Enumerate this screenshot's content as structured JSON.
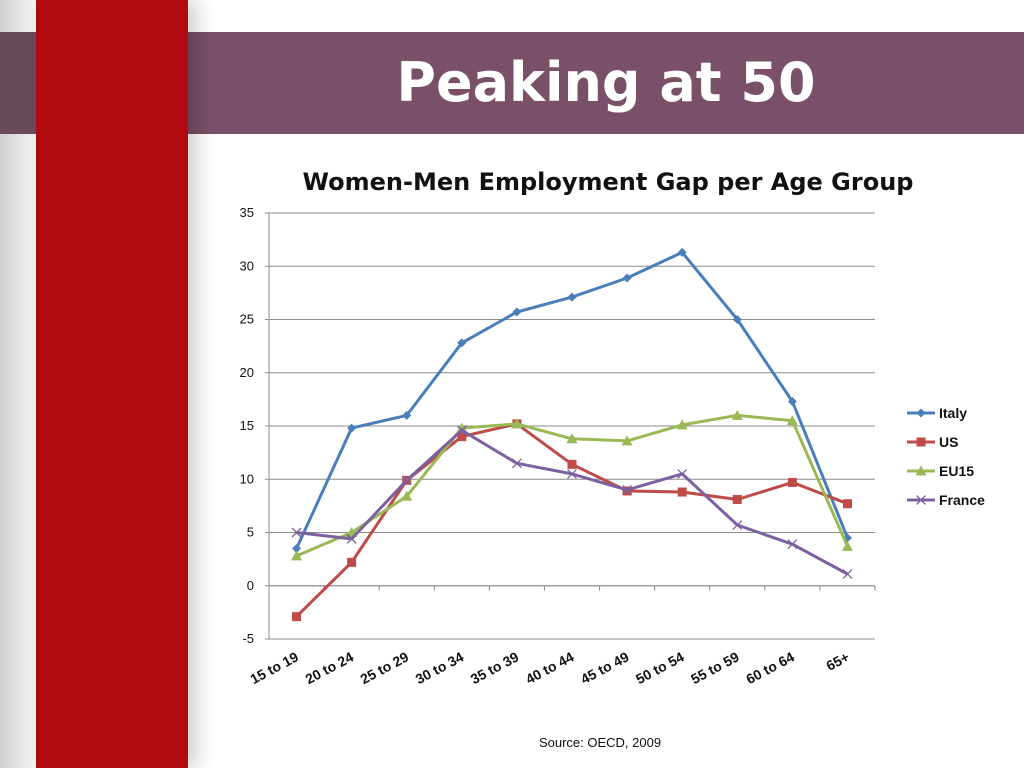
{
  "slide": {
    "title": "Peaking at 50",
    "source": "Source: OECD, 2009"
  },
  "colors": {
    "red_bar": "#b00a10",
    "title_band": "#7a5068"
  },
  "chart_data": {
    "type": "line",
    "title": "Women-Men Employment Gap per Age Group",
    "xlabel": "",
    "ylabel": "",
    "categories": [
      "15 to 19",
      "20 to 24",
      "25 to 29",
      "30 to 34",
      "35 to 39",
      "40 to 44",
      "45 to 49",
      "50 to 54",
      "55 to 59",
      "60 to 64",
      "65+"
    ],
    "ylim": [
      -5,
      35
    ],
    "yticks": [
      -5,
      0,
      5,
      10,
      15,
      20,
      25,
      30,
      35
    ],
    "grid": true,
    "legend_position": "right",
    "series": [
      {
        "name": "Italy",
        "color": "#4a7ebb",
        "marker": "diamond",
        "values": [
          3.5,
          14.8,
          16.0,
          22.8,
          25.7,
          27.1,
          28.9,
          31.3,
          25.0,
          17.3,
          4.5
        ]
      },
      {
        "name": "US",
        "color": "#be4b48",
        "marker": "square",
        "values": [
          -2.9,
          2.2,
          9.9,
          14.0,
          15.2,
          11.4,
          8.9,
          8.8,
          8.1,
          9.7,
          7.7
        ]
      },
      {
        "name": "EU15",
        "color": "#98b954",
        "marker": "triangle",
        "values": [
          2.8,
          5.0,
          8.4,
          14.8,
          15.2,
          13.8,
          13.6,
          15.1,
          16.0,
          15.5,
          3.7
        ]
      },
      {
        "name": "France",
        "color": "#7d60a0",
        "marker": "x",
        "values": [
          5.0,
          4.4,
          9.9,
          14.6,
          11.5,
          10.5,
          9.0,
          10.5,
          5.7,
          3.9,
          1.1
        ]
      }
    ]
  }
}
